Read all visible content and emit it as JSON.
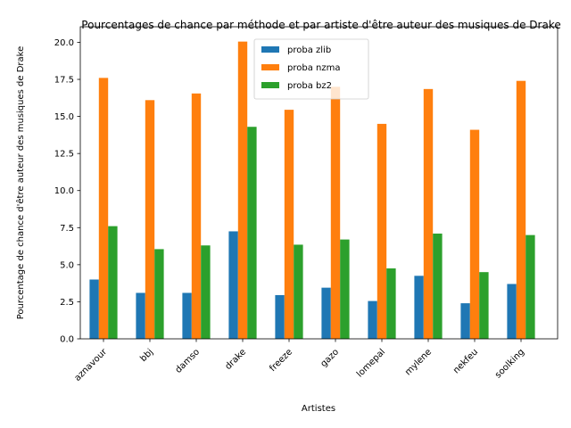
{
  "chart_data": {
    "type": "bar",
    "title": "Pourcentages de chance par méthode et par artiste d'être auteur des musiques de Drake",
    "xlabel": "Artistes",
    "ylabel": "Pourcentage de chance d'être auteur des musiques de Drake",
    "ylim": [
      0,
      21.05
    ],
    "yticks": [
      "0.0",
      "2.5",
      "5.0",
      "7.5",
      "10.0",
      "12.5",
      "15.0",
      "17.5",
      "20.0"
    ],
    "categories": [
      "aznavour",
      "bbj",
      "damso",
      "drake",
      "freeze",
      "gazo",
      "lomepal",
      "mylene",
      "nekfeu",
      "soolking"
    ],
    "series": [
      {
        "name": "proba zlib",
        "color": "#1f77b4",
        "values": [
          4.0,
          3.1,
          3.1,
          7.25,
          2.95,
          3.45,
          2.55,
          4.25,
          2.4,
          3.7
        ]
      },
      {
        "name": "proba nzma",
        "color": "#ff7f0e",
        "values": [
          17.6,
          16.1,
          16.55,
          20.05,
          15.45,
          17.0,
          14.5,
          16.85,
          14.1,
          17.4
        ]
      },
      {
        "name": "proba bz2",
        "color": "#2ca02c",
        "values": [
          7.6,
          6.05,
          6.3,
          14.3,
          6.35,
          6.7,
          4.75,
          7.1,
          4.5,
          7.0
        ]
      }
    ],
    "legend_position": "top-center",
    "grid": false
  }
}
